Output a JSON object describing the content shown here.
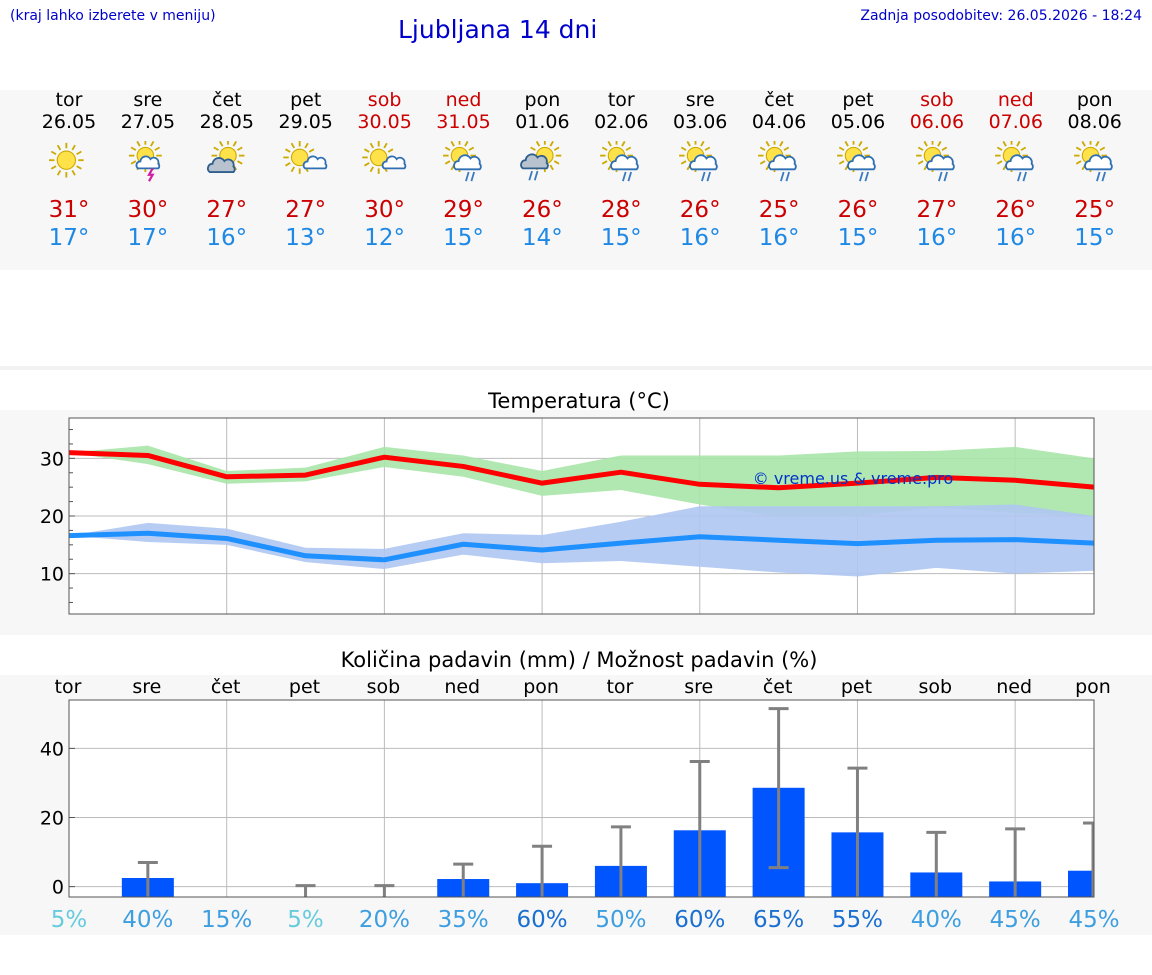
{
  "header": {
    "left_note": "(kraj lahko izberete v meniju)",
    "title": "Ljubljana 14 dni",
    "updated": "Zadnja posodobitev: 26.05.2026 - 18:24"
  },
  "days": [
    {
      "name": "tor",
      "date": "26.05",
      "weekend": false,
      "icon": "sun-icon",
      "tmax": "31°",
      "tmin": "17°"
    },
    {
      "name": "sre",
      "date": "27.05",
      "weekend": false,
      "icon": "sun-cloud-thunder-icon",
      "tmax": "30°",
      "tmin": "17°"
    },
    {
      "name": "čet",
      "date": "28.05",
      "weekend": false,
      "icon": "sun-cloudy-icon",
      "tmax": "27°",
      "tmin": "16°"
    },
    {
      "name": "pet",
      "date": "29.05",
      "weekend": false,
      "icon": "sun-small-cloud-icon",
      "tmax": "27°",
      "tmin": "13°"
    },
    {
      "name": "sob",
      "date": "30.05",
      "weekend": true,
      "icon": "sun-small-cloud-icon",
      "tmax": "30°",
      "tmin": "12°"
    },
    {
      "name": "ned",
      "date": "31.05",
      "weekend": true,
      "icon": "sun-cloud-rain-icon",
      "tmax": "29°",
      "tmin": "15°"
    },
    {
      "name": "pon",
      "date": "01.06",
      "weekend": false,
      "icon": "sun-dark-cloud-rain-icon",
      "tmax": "26°",
      "tmin": "14°"
    },
    {
      "name": "tor",
      "date": "02.06",
      "weekend": false,
      "icon": "sun-cloud-rain-icon",
      "tmax": "28°",
      "tmin": "15°"
    },
    {
      "name": "sre",
      "date": "03.06",
      "weekend": false,
      "icon": "sun-cloud-rain-icon",
      "tmax": "26°",
      "tmin": "16°"
    },
    {
      "name": "čet",
      "date": "04.06",
      "weekend": false,
      "icon": "sun-cloud-rain-icon",
      "tmax": "25°",
      "tmin": "16°"
    },
    {
      "name": "pet",
      "date": "05.06",
      "weekend": false,
      "icon": "sun-cloud-rain-icon",
      "tmax": "26°",
      "tmin": "15°"
    },
    {
      "name": "sob",
      "date": "06.06",
      "weekend": true,
      "icon": "sun-cloud-rain-icon",
      "tmax": "27°",
      "tmin": "16°"
    },
    {
      "name": "ned",
      "date": "07.06",
      "weekend": true,
      "icon": "sun-cloud-rain-icon",
      "tmax": "26°",
      "tmin": "16°"
    },
    {
      "name": "pon",
      "date": "08.06",
      "weekend": false,
      "icon": "sun-cloud-rain-icon",
      "tmax": "25°",
      "tmin": "15°"
    }
  ],
  "colors": {
    "max_line": "#ff0000",
    "max_band": "#a8e6a8",
    "min_line": "#1e90ff",
    "min_band": "#afc6f2",
    "bar": "#0055ff",
    "errbar": "#808080",
    "weekend": "#cc0000",
    "title_blue": "#0000cc"
  },
  "chart_data": [
    {
      "type": "line",
      "title": "Temperatura (°C)",
      "watermark": "© vreme.us & vreme.pro",
      "categories": [
        "26.05",
        "27.05",
        "28.05",
        "29.05",
        "30.05",
        "31.05",
        "01.06",
        "02.06",
        "03.06",
        "04.06",
        "05.06",
        "06.06",
        "07.06",
        "08.06"
      ],
      "yticks": [
        10,
        20,
        30
      ],
      "ylim": [
        3,
        37
      ],
      "grid": true,
      "series": [
        {
          "values": [
            31,
            30.5,
            26.8,
            27.1,
            30.2,
            28.6,
            25.7,
            27.6,
            25.5,
            24.9,
            25.7,
            26.7,
            26.2,
            25
          ],
          "band_low": [
            31,
            29,
            25.6,
            26,
            28.5,
            26.8,
            23.5,
            24.5,
            22,
            19.8,
            20,
            21.5,
            20.5,
            20
          ],
          "band_high": [
            31,
            32.2,
            27.8,
            28.4,
            32,
            30.5,
            27.8,
            30.5,
            30.5,
            30.5,
            31.2,
            31.3,
            32,
            30
          ]
        },
        {
          "values": [
            16.6,
            17,
            16.1,
            13.1,
            12.4,
            15.1,
            14.1,
            15.3,
            16.4,
            15.8,
            15.2,
            15.8,
            15.9,
            15.3
          ],
          "band_low": [
            16.6,
            15.5,
            15,
            12,
            10.8,
            13.3,
            11.8,
            12.2,
            11.2,
            10.2,
            9.5,
            11,
            10,
            10.5
          ],
          "band_high": [
            16.6,
            18.8,
            17.8,
            14.5,
            14.3,
            17,
            16.7,
            19,
            21.7,
            21.7,
            21.7,
            21.7,
            22,
            20
          ]
        }
      ]
    },
    {
      "type": "bar",
      "title": "Količina padavin (mm) / Možnost padavin (%)",
      "categories": [
        "tor",
        "sre",
        "čet",
        "pet",
        "sob",
        "ned",
        "pon",
        "tor",
        "sre",
        "čet",
        "pet",
        "sob",
        "ned",
        "pon"
      ],
      "values": [
        0,
        2.5,
        0,
        0,
        0,
        2.2,
        1,
        6,
        16.3,
        28.6,
        15.7,
        4.1,
        1.5,
        4.6
      ],
      "err_low": [
        0,
        0,
        0,
        0,
        0,
        0,
        0,
        0,
        0,
        5.5,
        0,
        0,
        0,
        0
      ],
      "err_high": [
        0,
        7,
        0,
        0.3,
        0.3,
        6.5,
        11.7,
        17.3,
        36.2,
        51.5,
        34.3,
        15.7,
        16.7,
        18.4
      ],
      "yticks": [
        0,
        20,
        40
      ],
      "ylim": [
        -3,
        54
      ],
      "grid": true,
      "probabilities": [
        "5%",
        "40%",
        "15%",
        "5%",
        "20%",
        "35%",
        "60%",
        "50%",
        "60%",
        "65%",
        "55%",
        "40%",
        "45%",
        "45%"
      ],
      "prob_colors": [
        "#66ccdd",
        "#3d9ee0",
        "#3d9ee0",
        "#66ccdd",
        "#3d9ee0",
        "#3d9ee0",
        "#1a6fd0",
        "#3d9ee0",
        "#1a6fd0",
        "#1a6fd0",
        "#1a6fd0",
        "#3d9ee0",
        "#3d9ee0",
        "#3d9ee0"
      ]
    }
  ]
}
